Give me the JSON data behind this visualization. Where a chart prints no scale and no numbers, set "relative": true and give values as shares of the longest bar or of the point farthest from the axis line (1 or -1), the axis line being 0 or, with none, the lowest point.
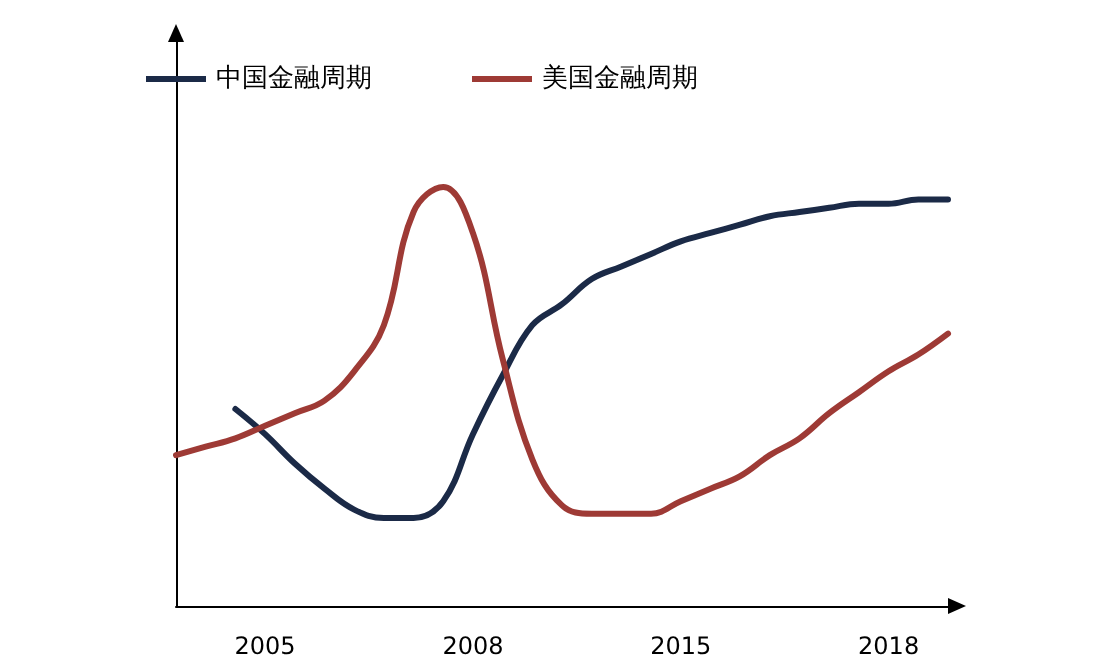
{
  "chart_data": {
    "type": "line",
    "relative": true,
    "categories": [
      null,
      null,
      null,
      "2005",
      null,
      null,
      null,
      null,
      null,
      null,
      "2008",
      null,
      null,
      null,
      null,
      null,
      null,
      "2015",
      null,
      null,
      null,
      null,
      null,
      null,
      "2018",
      null,
      null
    ],
    "series": [
      {
        "name": "中国金融周期",
        "color": "#1b2a47",
        "values": [
          null,
          null,
          0.47,
          0.41,
          0.34,
          0.28,
          0.23,
          0.21,
          0.21,
          0.25,
          0.41,
          0.55,
          0.67,
          0.72,
          0.78,
          0.81,
          0.84,
          0.87,
          0.89,
          0.91,
          0.93,
          0.94,
          0.95,
          0.96,
          0.96,
          0.97,
          0.97
        ]
      },
      {
        "name": "美国金融周期",
        "color": "#9e3a35",
        "values": [
          0.36,
          0.38,
          0.4,
          0.43,
          0.46,
          0.49,
          0.56,
          0.67,
          0.94,
          1.0,
          0.89,
          0.59,
          0.35,
          0.24,
          0.22,
          0.22,
          0.22,
          0.25,
          0.28,
          0.31,
          0.36,
          0.4,
          0.46,
          0.51,
          0.56,
          0.6,
          0.65
        ]
      }
    ],
    "legend": "top left",
    "grid": false,
    "marker": "none",
    "line_style": "solid"
  }
}
